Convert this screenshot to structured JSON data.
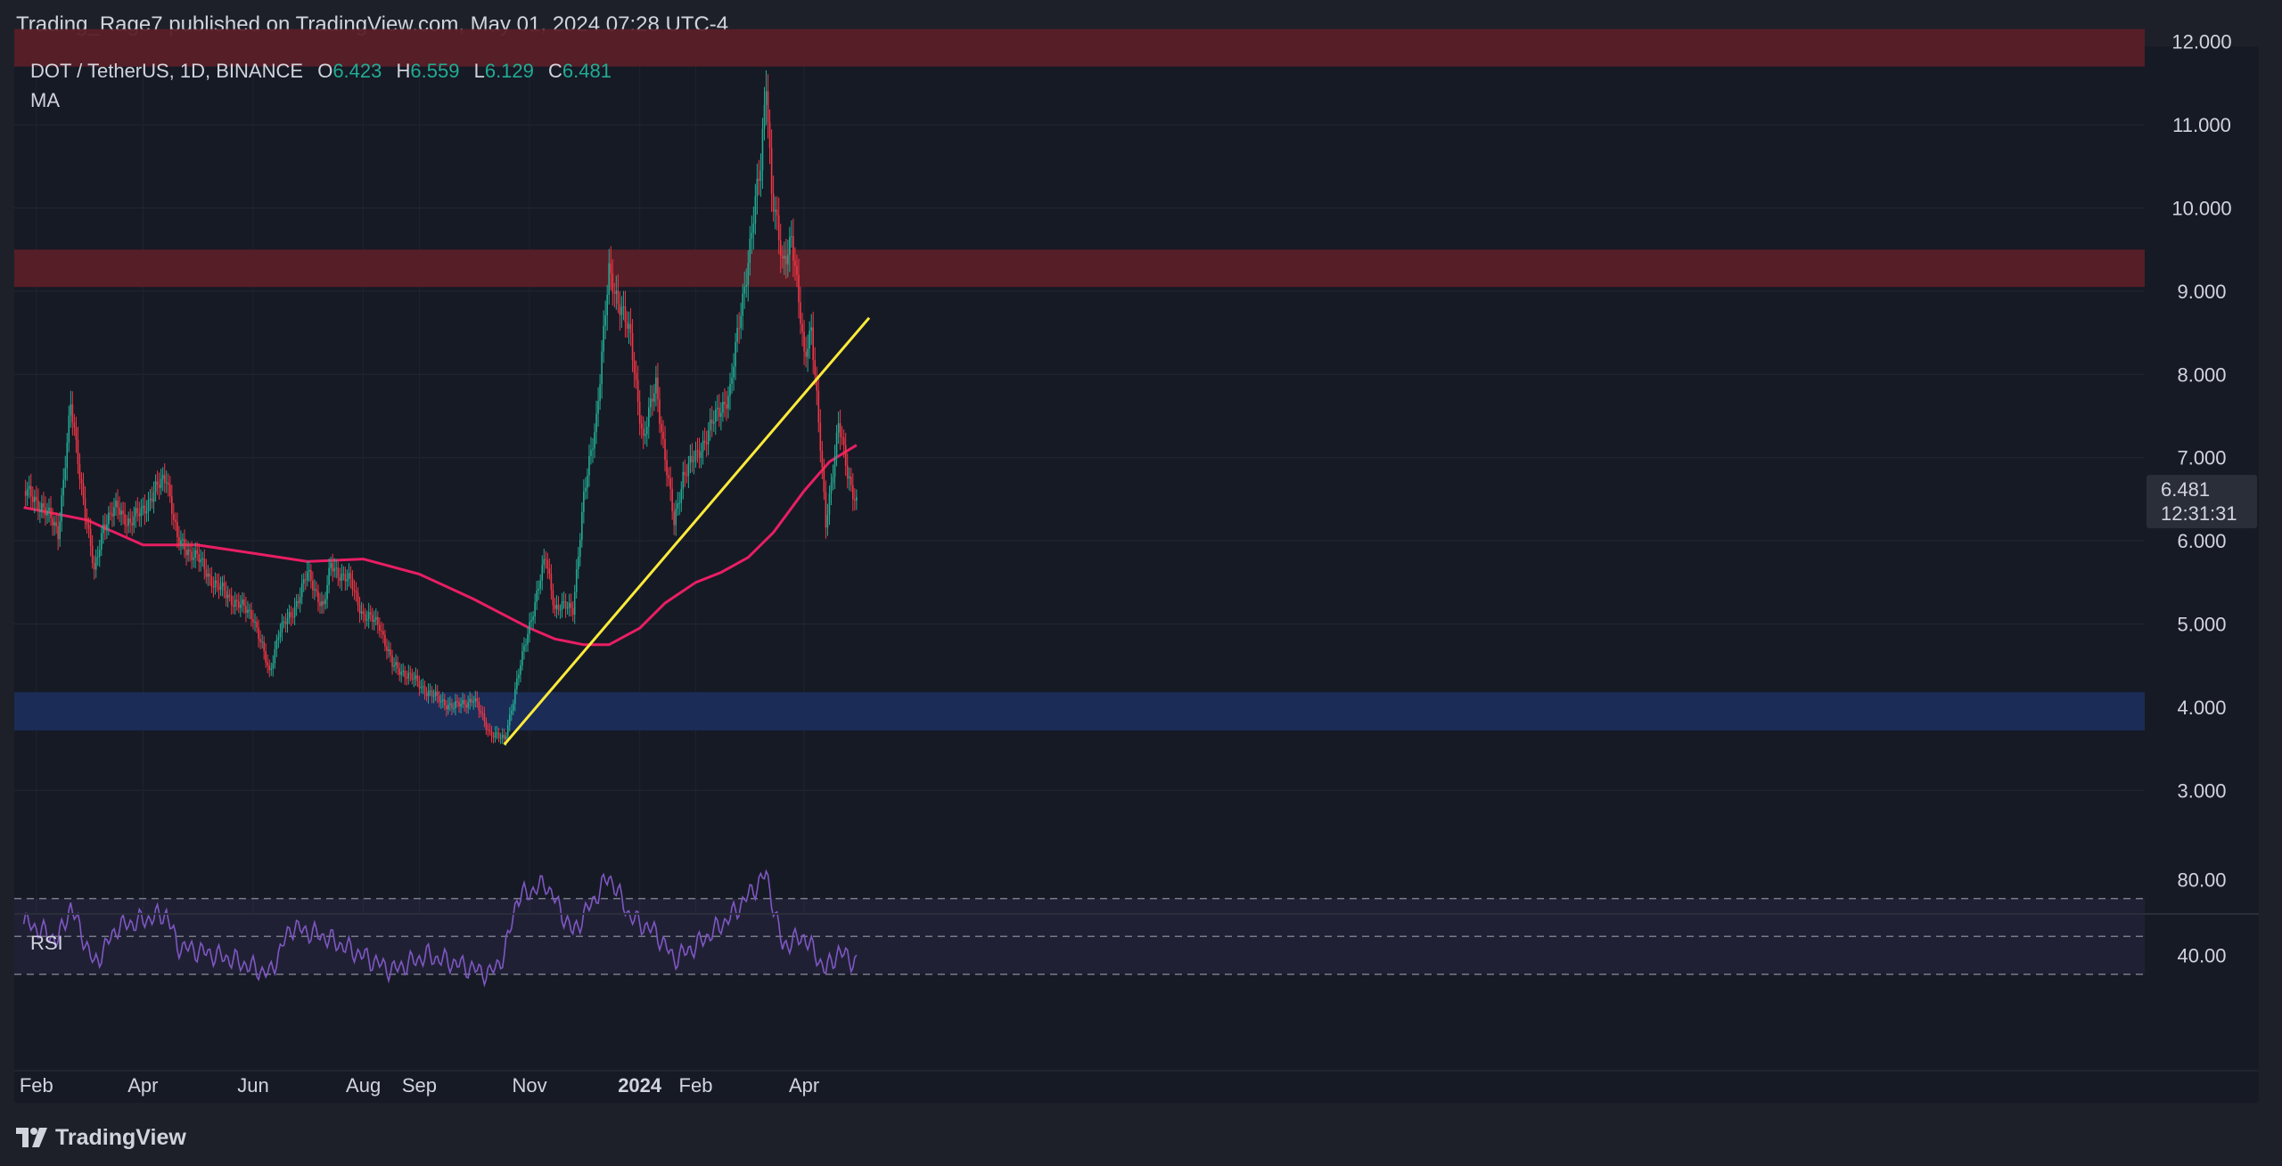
{
  "publisher": "Trading_Rage7 published on TradingView.com, May 01, 2024 07:28 UTC-4",
  "legend": {
    "symbol": "DOT / TetherUS, 1D, BINANCE",
    "o_label": "O",
    "o_value": "6.423",
    "h_label": "H",
    "h_value": "6.559",
    "l_label": "L",
    "l_value": "6.129",
    "c_label": "C",
    "c_value": "6.481",
    "ma_label": "MA"
  },
  "rsi_label": "RSI",
  "footer": {
    "brand": "TradingView"
  },
  "price_badge": {
    "price": "6.481",
    "countdown": "12:31:31"
  },
  "colors": {
    "background": "#161a25",
    "up": "#22ab94",
    "down": "#f23645",
    "ma": "#e91e63",
    "trendline": "#ffeb3b",
    "resistance_zone": "#5a1f27",
    "support_zone": "#1b2d5a",
    "rsi_line": "#7e57c2"
  },
  "chart_data": {
    "type": "line",
    "x_tick_labels": [
      "Feb",
      "Apr",
      "Jun",
      "Aug",
      "Sep",
      "Nov",
      "2024",
      "Feb",
      "Apr"
    ],
    "y_tick_labels": [
      "12.000",
      "11.000",
      "10.000",
      "9.000",
      "8.000",
      "7.000",
      "6.000",
      "5.000",
      "4.000",
      "3.000"
    ],
    "ylim": [
      2.5,
      12.8
    ],
    "price_series": {
      "name": "DOT / TetherUS",
      "x": [
        "2023-01-25",
        "2023-02-05",
        "2023-02-13",
        "2023-02-20",
        "2023-03-05",
        "2023-03-10",
        "2023-03-18",
        "2023-03-25",
        "2023-04-05",
        "2023-04-14",
        "2023-04-20",
        "2023-05-01",
        "2023-05-10",
        "2023-05-20",
        "2023-06-01",
        "2023-06-10",
        "2023-06-15",
        "2023-06-22",
        "2023-07-01",
        "2023-07-10",
        "2023-07-14",
        "2023-07-25",
        "2023-08-01",
        "2023-08-10",
        "2023-08-17",
        "2023-08-25",
        "2023-09-05",
        "2023-09-11",
        "2023-09-20",
        "2023-10-01",
        "2023-10-10",
        "2023-10-18",
        "2023-10-25",
        "2023-11-01",
        "2023-11-10",
        "2023-11-15",
        "2023-11-25",
        "2023-12-01",
        "2023-12-08",
        "2023-12-15",
        "2023-12-22",
        "2023-12-27",
        "2024-01-03",
        "2024-01-10",
        "2024-01-15",
        "2024-01-20",
        "2024-01-25",
        "2024-02-01",
        "2024-02-10",
        "2024-02-20",
        "2024-03-01",
        "2024-03-08",
        "2024-03-11",
        "2024-03-14",
        "2024-03-20",
        "2024-03-25",
        "2024-04-01",
        "2024-04-05",
        "2024-04-13",
        "2024-04-20",
        "2024-04-25",
        "2024-04-30"
      ],
      "values": [
        6.6,
        6.4,
        6.1,
        7.6,
        5.6,
        6.2,
        6.4,
        6.2,
        6.5,
        6.8,
        6.0,
        5.8,
        5.5,
        5.3,
        5.1,
        4.4,
        4.9,
        5.1,
        5.6,
        5.2,
        5.7,
        5.5,
        5.1,
        5.0,
        4.5,
        4.4,
        4.2,
        4.1,
        4.0,
        4.1,
        3.7,
        3.6,
        4.3,
        5.0,
        5.8,
        5.2,
        5.2,
        6.5,
        7.5,
        9.2,
        8.8,
        8.4,
        7.2,
        7.9,
        7.0,
        6.2,
        6.8,
        7.0,
        7.4,
        7.8,
        9.4,
        10.5,
        11.6,
        10.2,
        9.3,
        9.7,
        8.2,
        8.6,
        6.2,
        7.4,
        6.8,
        6.481
      ]
    },
    "ma_series": {
      "name": "MA",
      "x": [
        "2023-01-25",
        "2023-03-01",
        "2023-04-01",
        "2023-05-01",
        "2023-06-01",
        "2023-07-01",
        "2023-08-01",
        "2023-09-01",
        "2023-10-01",
        "2023-11-01",
        "2023-11-15",
        "2023-12-01",
        "2023-12-15",
        "2024-01-01",
        "2024-01-15",
        "2024-02-01",
        "2024-02-15",
        "2024-03-01",
        "2024-03-15",
        "2024-04-01",
        "2024-04-15",
        "2024-04-30"
      ],
      "values": [
        6.4,
        6.25,
        5.95,
        5.95,
        5.85,
        5.75,
        5.78,
        5.6,
        5.3,
        4.95,
        4.82,
        4.75,
        4.75,
        4.95,
        5.25,
        5.5,
        5.62,
        5.8,
        6.1,
        6.6,
        6.95,
        7.15
      ]
    },
    "trendline": {
      "x": [
        "2023-10-18",
        "2024-05-07"
      ],
      "y": [
        3.55,
        8.68
      ]
    },
    "zones": [
      {
        "kind": "resistance",
        "y_low": 11.7,
        "y_high": 12.15
      },
      {
        "kind": "resistance",
        "y_low": 9.05,
        "y_high": 9.5
      },
      {
        "kind": "support",
        "y_low": 3.72,
        "y_high": 4.18
      }
    ],
    "rsi": {
      "name": "RSI",
      "y_tick_labels": [
        "80.00",
        "40.00"
      ],
      "levels": [
        70,
        50,
        30
      ],
      "x": [
        "2023-01-25",
        "2023-02-13",
        "2023-02-20",
        "2023-03-05",
        "2023-03-18",
        "2023-04-14",
        "2023-04-20",
        "2023-05-20",
        "2023-06-10",
        "2023-06-22",
        "2023-07-10",
        "2023-08-17",
        "2023-09-05",
        "2023-09-20",
        "2023-10-10",
        "2023-10-18",
        "2023-10-25",
        "2023-11-10",
        "2023-11-25",
        "2023-12-15",
        "2023-12-27",
        "2024-01-10",
        "2024-01-20",
        "2024-02-01",
        "2024-02-20",
        "2024-03-11",
        "2024-03-20",
        "2024-04-01",
        "2024-04-13",
        "2024-04-20",
        "2024-04-30"
      ],
      "values": [
        58,
        48,
        66,
        35,
        55,
        62,
        45,
        38,
        30,
        55,
        50,
        32,
        40,
        36,
        30,
        40,
        70,
        78,
        52,
        82,
        60,
        52,
        38,
        45,
        60,
        83,
        45,
        50,
        32,
        42,
        36
      ]
    }
  }
}
